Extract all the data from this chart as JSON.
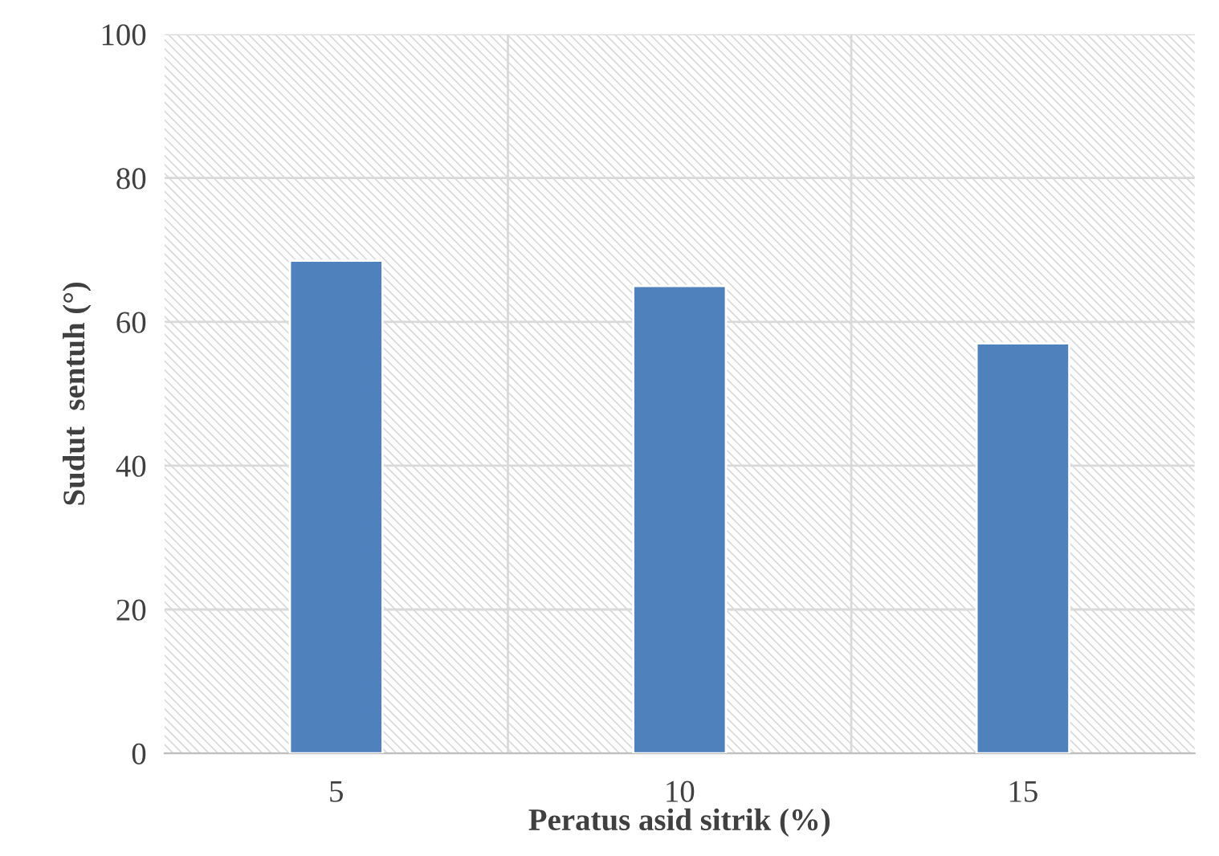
{
  "chart_data": {
    "type": "bar",
    "xlabel": "Peratus asid sitrik (%)",
    "ylabel": "Sudut  sentuh (°)",
    "categories": [
      "5",
      "10",
      "15"
    ],
    "values": [
      68.5,
      65,
      57
    ],
    "color": "#4f81bd",
    "ylim": [
      0,
      100
    ],
    "yticks": [
      0,
      20,
      40,
      60,
      80,
      100
    ],
    "grid": true
  }
}
